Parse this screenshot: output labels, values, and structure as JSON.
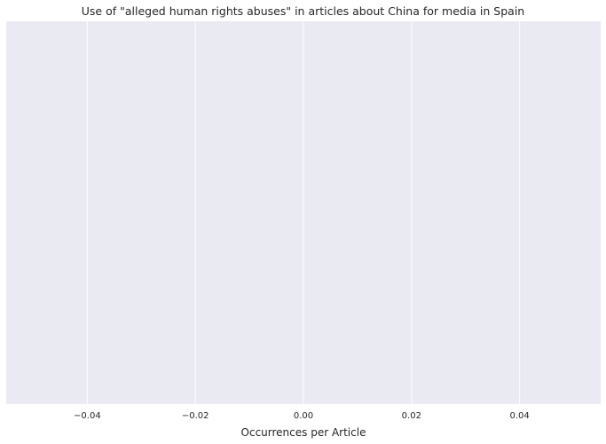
{
  "chart_data": {
    "type": "bar",
    "orientation": "horizontal",
    "title": "Use of \"alleged human rights abuses\" in articles about China for media in Spain",
    "xlabel": "Occurrences per Article",
    "ylabel": "",
    "categories": [],
    "values": [],
    "xlim": [
      -0.055,
      0.055
    ],
    "xticks": [
      -0.04,
      -0.02,
      0.0,
      0.02,
      0.04
    ],
    "xtick_labels": [
      "−0.04",
      "−0.02",
      "0.00",
      "0.02",
      "0.04"
    ],
    "grid": true,
    "colors": {
      "plot_background": "#EAEAF2",
      "grid": "#FFFFFF",
      "text": "#262626"
    }
  }
}
